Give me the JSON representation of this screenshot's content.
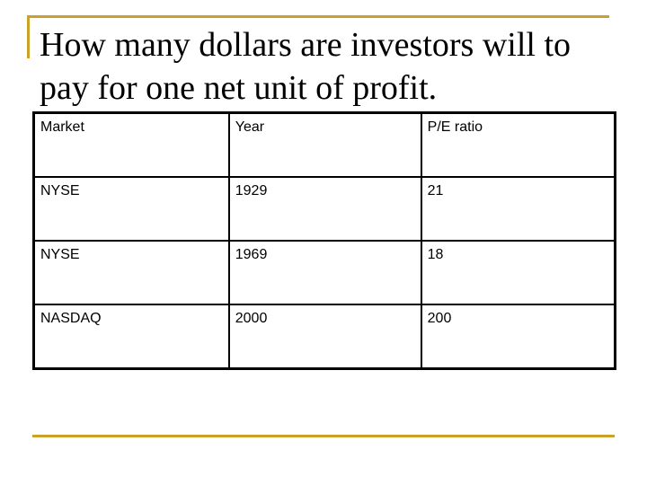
{
  "slide": {
    "title": "How many dollars are investors will to pay for one net unit of profit.",
    "table": {
      "headers": [
        "Market",
        "Year",
        "P/E ratio"
      ],
      "rows": [
        [
          "NYSE",
          "1929",
          "21"
        ],
        [
          "NYSE",
          "1969",
          "18"
        ],
        [
          "NASDAQ",
          "2000",
          "200"
        ]
      ]
    },
    "colors": {
      "accent": "#c9a227",
      "text": "#000000",
      "background": "#ffffff"
    }
  }
}
